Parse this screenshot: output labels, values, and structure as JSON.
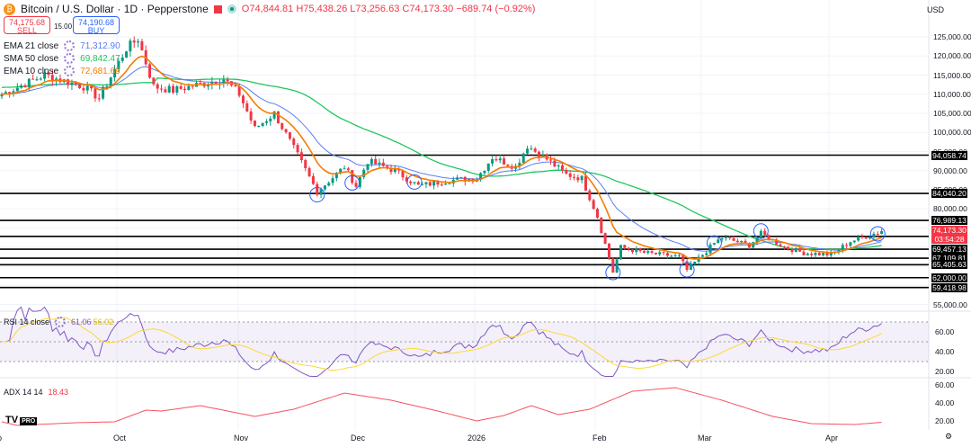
{
  "header": {
    "title": "Bitcoin / U.S. Dollar · 1D · Pepperstone",
    "logo": "₿",
    "open": "O74,844.81",
    "high": "H75,438.26",
    "low": "L73,256.63",
    "close": "C74,173.30",
    "change": "−689.74 (−0.92%)"
  },
  "trade": {
    "sell_price": "74,175.68",
    "sell_label": "SELL",
    "spread": "15.00",
    "buy_price": "74,190.68",
    "buy_label": "BUY"
  },
  "indicators": [
    {
      "label": "EMA 21 close",
      "value": "71,312.90",
      "color": "#5b7ff0"
    },
    {
      "label": "SMA 50 close",
      "value": "69,842.47",
      "color": "#22c55e"
    },
    {
      "label": "EMA 10 close",
      "value": "72,681.69",
      "color": "#f57c00"
    }
  ],
  "rsi": {
    "label": "RSI 14 close",
    "value": "61.06",
    "ma": "56.02",
    "line_color": "#7e57c2",
    "ma_color": "#fdd835"
  },
  "adx": {
    "label": "ADX 14 14",
    "value": "18.43",
    "color": "#f23645"
  },
  "currency": "USD",
  "price_axis": [
    "125,000.00",
    "120,000.00",
    "115,000.00",
    "110,000.00",
    "105,000.00",
    "100,000.00",
    "95,000.00",
    "90,000.00",
    "85,000.00",
    "80,000.00",
    "55,000.00"
  ],
  "levels": [
    "94,058.74",
    "84,040.20",
    "76,989.13",
    "72,807.09",
    "69,457.13",
    "67,109.81",
    "65,405.63",
    "62,000.00",
    "59,418.98"
  ],
  "last_price": {
    "price": "74,173.30",
    "countdown": "03:54:28"
  },
  "rsi_axis": [
    "60.00",
    "40.00",
    "20.00"
  ],
  "adx_axis": [
    "60.00",
    "40.00",
    "20.00"
  ],
  "x_axis": [
    "ep",
    "Oct",
    "Nov",
    "Dec",
    "2026",
    "Feb",
    "Mar",
    "Apr"
  ],
  "brand": "TV",
  "brand_badge": "PRO",
  "chart_data": {
    "type": "candlestick",
    "price_keypoints": [
      [
        "2025-09-01",
        110000
      ],
      [
        "2025-09-12",
        115000
      ],
      [
        "2025-09-22",
        112000
      ],
      [
        "2025-09-26",
        109000
      ],
      [
        "2025-10-03",
        122000
      ],
      [
        "2025-10-06",
        124500
      ],
      [
        "2025-10-10",
        112000
      ],
      [
        "2025-10-15",
        111000
      ],
      [
        "2025-10-28",
        114000
      ],
      [
        "2025-11-01",
        110000
      ],
      [
        "2025-11-05",
        101000
      ],
      [
        "2025-11-10",
        105000
      ],
      [
        "2025-11-16",
        94000
      ],
      [
        "2025-11-21",
        84500
      ],
      [
        "2025-11-28",
        91000
      ],
      [
        "2025-12-01",
        86000
      ],
      [
        "2025-12-04",
        92500
      ],
      [
        "2025-12-11",
        90000
      ],
      [
        "2025-12-17",
        86000
      ],
      [
        "2025-12-25",
        87500
      ],
      [
        "2026-01-01",
        88000
      ],
      [
        "2026-01-05",
        93500
      ],
      [
        "2026-01-11",
        91000
      ],
      [
        "2026-01-14",
        96500
      ],
      [
        "2026-01-19",
        93000
      ],
      [
        "2026-01-24",
        89000
      ],
      [
        "2026-01-28",
        88000
      ],
      [
        "2026-02-01",
        78000
      ],
      [
        "2026-02-05",
        63500
      ],
      [
        "2026-02-07",
        70000
      ],
      [
        "2026-02-13",
        68500
      ],
      [
        "2026-02-22",
        67500
      ],
      [
        "2026-02-24",
        64000
      ],
      [
        "2026-03-03",
        71000
      ],
      [
        "2026-03-05",
        72500
      ],
      [
        "2026-03-12",
        70500
      ],
      [
        "2026-03-15",
        73500
      ],
      [
        "2026-03-21",
        70000
      ],
      [
        "2026-03-26",
        68500
      ],
      [
        "2026-04-02",
        68000
      ],
      [
        "2026-04-07",
        71500
      ],
      [
        "2026-04-10",
        72500
      ],
      [
        "2026-04-15",
        74173.3
      ]
    ],
    "adx_keypoints": [
      [
        "2025-09-01",
        19
      ],
      [
        "2025-09-05",
        15
      ],
      [
        "2025-09-20",
        18
      ],
      [
        "2025-09-30",
        19
      ],
      [
        "2025-10-08",
        32
      ],
      [
        "2025-10-12",
        31
      ],
      [
        "2025-10-22",
        37
      ],
      [
        "2025-11-05",
        25
      ],
      [
        "2025-11-15",
        33
      ],
      [
        "2025-11-28",
        51
      ],
      [
        "2025-12-10",
        43
      ],
      [
        "2025-12-22",
        31
      ],
      [
        "2026-01-01",
        20
      ],
      [
        "2026-01-08",
        26
      ],
      [
        "2026-01-15",
        37
      ],
      [
        "2026-01-22",
        27
      ],
      [
        "2026-01-30",
        33
      ],
      [
        "2026-02-10",
        53
      ],
      [
        "2026-02-21",
        57
      ],
      [
        "2026-03-05",
        43
      ],
      [
        "2026-03-18",
        25
      ],
      [
        "2026-03-28",
        17
      ],
      [
        "2026-04-08",
        16
      ],
      [
        "2026-04-15",
        18.43
      ]
    ],
    "levels": [
      94058.74,
      84040.2,
      76989.13,
      72807.09,
      69457.13,
      67109.81,
      65405.63,
      62000,
      59418.98
    ],
    "marked_lows": [
      "2025-11-21",
      "2025-11-30",
      "2025-12-16",
      "2026-02-05",
      "2026-02-24",
      "2026-03-03",
      "2026-03-15",
      "2026-04-14"
    ],
    "ylim": [
      55000,
      128000
    ],
    "rsi_bands": [
      30,
      70
    ],
    "adx_ylim": [
      10,
      65
    ],
    "up_color": "#089981",
    "down_color": "#f23645"
  }
}
